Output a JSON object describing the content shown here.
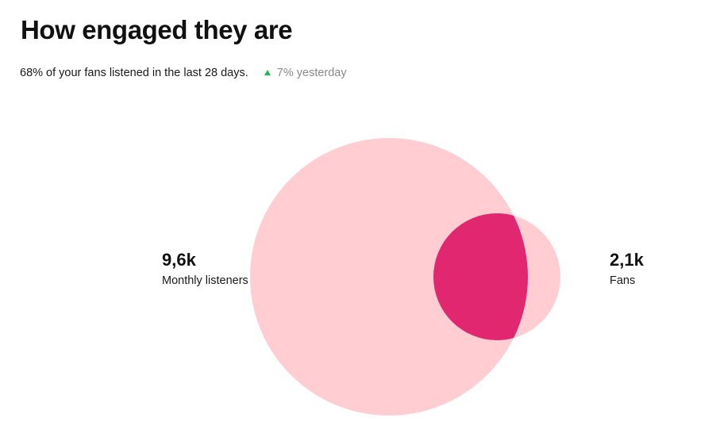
{
  "title": "How engaged they are",
  "subtitle": "68% of your fans listened in the last 28 days.",
  "delta": {
    "icon": "up-arrow-icon",
    "color": "#1db954",
    "text": "7% yesterday"
  },
  "chart_data": {
    "type": "venn",
    "title": "How engaged they are",
    "sets": [
      {
        "value_label": "9,6k",
        "label": "Monthly listeners",
        "color": "#ffcdd2"
      },
      {
        "value_label": "2,1k",
        "label": "Fans",
        "color": "#ffcdd2"
      }
    ],
    "overlap": {
      "percent_of_fans": 68,
      "color": "#e0276f"
    }
  }
}
